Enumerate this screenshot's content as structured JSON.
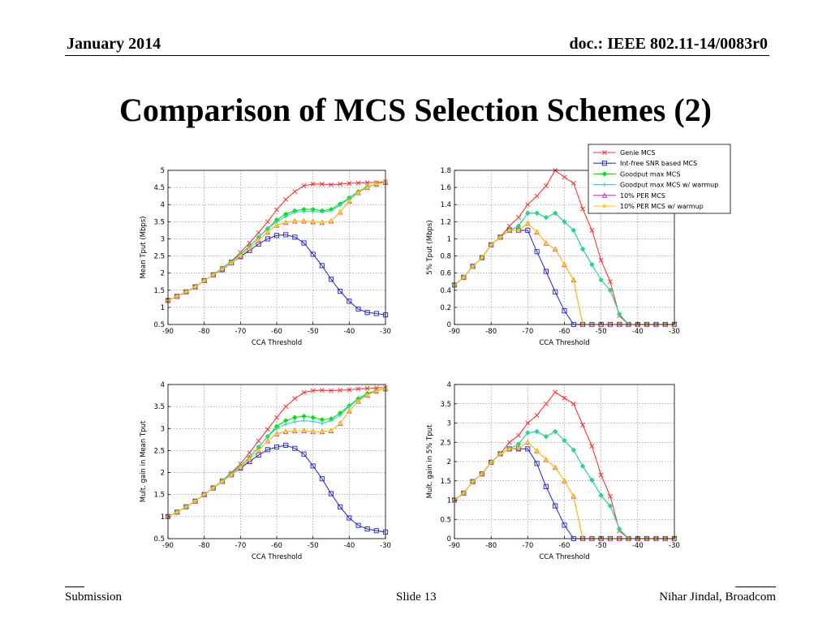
{
  "header": {
    "date": "January 2014",
    "doc": "doc.: IEEE 802.11-14/0083r0"
  },
  "slide_title": "Comparison of MCS Selection Schemes (2)",
  "footer": {
    "left": "Submission",
    "middle": "Slide 13",
    "right": "Nihar Jindal, Broadcom"
  },
  "legend": {
    "entries": [
      {
        "label": "Genie MCS",
        "color": "#ff3333",
        "marker": "x"
      },
      {
        "label": "Int-free SNR based MCS",
        "color": "#3333cc",
        "marker": "s"
      },
      {
        "label": "Goodput max MCS",
        "color": "#00e600",
        "marker": "d"
      },
      {
        "label": "Goodput max MCS w/ warmup",
        "color": "#33cccc",
        "marker": "+"
      },
      {
        "label": "10% PER MCS",
        "color": "#cc33cc",
        "marker": "^"
      },
      {
        "label": "10% PER MCS w/ warmup",
        "color": "#ffcc00",
        "marker": "*"
      }
    ]
  },
  "chart_data": [
    {
      "type": "line",
      "xlabel": "CCA Threshold",
      "ylabel": "Mean Tput (Mbps)",
      "xlim": [
        -90,
        -30
      ],
      "ylim": [
        0.5,
        5
      ],
      "xticks": [
        -90,
        -80,
        -70,
        -60,
        -50,
        -40,
        -30
      ],
      "yticks": [
        0.5,
        1,
        1.5,
        2,
        2.5,
        3,
        3.5,
        4,
        4.5,
        5
      ],
      "grid": true,
      "x": [
        -90,
        -87.5,
        -85,
        -82.5,
        -80,
        -77.5,
        -75,
        -72.5,
        -70,
        -67.5,
        -65,
        -62.5,
        -60,
        -57.5,
        -55,
        -52.5,
        -50,
        -47.5,
        -45,
        -42.5,
        -40,
        -37.5,
        -35,
        -32.5,
        -30
      ],
      "series": [
        {
          "name": "Genie MCS",
          "values": [
            1.2,
            1.32,
            1.45,
            1.6,
            1.78,
            1.95,
            2.15,
            2.35,
            2.6,
            2.88,
            3.18,
            3.5,
            3.85,
            4.15,
            4.38,
            4.55,
            4.6,
            4.6,
            4.58,
            4.6,
            4.62,
            4.63,
            4.64,
            4.65,
            4.67
          ]
        },
        {
          "name": "Int-free SNR based MCS",
          "values": [
            1.2,
            1.32,
            1.45,
            1.6,
            1.78,
            1.95,
            2.1,
            2.3,
            2.48,
            2.66,
            2.85,
            3.0,
            3.1,
            3.12,
            3.05,
            2.88,
            2.55,
            2.22,
            1.82,
            1.47,
            1.18,
            0.95,
            0.85,
            0.82,
            0.78
          ]
        },
        {
          "name": "Goodput max MCS",
          "values": [
            1.2,
            1.32,
            1.45,
            1.6,
            1.78,
            1.95,
            2.15,
            2.33,
            2.55,
            2.78,
            3.05,
            3.3,
            3.55,
            3.72,
            3.82,
            3.86,
            3.86,
            3.82,
            3.86,
            4.02,
            4.2,
            4.38,
            4.52,
            4.6,
            4.65
          ]
        },
        {
          "name": "Goodput max MCS w/ warmup",
          "values": [
            1.2,
            1.32,
            1.45,
            1.6,
            1.78,
            1.95,
            2.15,
            2.33,
            2.55,
            2.78,
            3.05,
            3.3,
            3.5,
            3.65,
            3.78,
            3.8,
            3.8,
            3.78,
            3.82,
            3.98,
            4.18,
            4.36,
            4.5,
            4.6,
            4.65
          ]
        },
        {
          "name": "10% PER MCS",
          "values": [
            1.2,
            1.32,
            1.45,
            1.6,
            1.78,
            1.95,
            2.12,
            2.3,
            2.5,
            2.72,
            2.96,
            3.2,
            3.4,
            3.48,
            3.52,
            3.52,
            3.5,
            3.48,
            3.52,
            3.78,
            4.1,
            4.35,
            4.5,
            4.6,
            4.65
          ]
        },
        {
          "name": "10% PER MCS w/ warmup",
          "values": [
            1.2,
            1.32,
            1.45,
            1.6,
            1.78,
            1.95,
            2.12,
            2.3,
            2.5,
            2.72,
            2.96,
            3.2,
            3.4,
            3.48,
            3.52,
            3.52,
            3.5,
            3.48,
            3.52,
            3.78,
            4.1,
            4.35,
            4.5,
            4.6,
            4.65
          ]
        }
      ]
    },
    {
      "type": "line",
      "xlabel": "CCA Threshold",
      "ylabel": "5% Tput (Mbps)",
      "xlim": [
        -90,
        -30
      ],
      "ylim": [
        0,
        1.8
      ],
      "xticks": [
        -90,
        -80,
        -70,
        -60,
        -50,
        -40,
        -30
      ],
      "yticks": [
        0,
        0.2,
        0.4,
        0.6,
        0.8,
        1,
        1.2,
        1.4,
        1.6,
        1.8
      ],
      "grid": true,
      "x": [
        -90,
        -87.5,
        -85,
        -82.5,
        -80,
        -77.5,
        -75,
        -72.5,
        -70,
        -67.5,
        -65,
        -62.5,
        -60,
        -57.5,
        -55,
        -52.5,
        -50,
        -47.5,
        -45,
        -42.5,
        -40,
        -37.5,
        -35,
        -32.5,
        -30
      ],
      "series": [
        {
          "name": "Genie MCS",
          "values": [
            0.46,
            0.55,
            0.68,
            0.78,
            0.93,
            1.02,
            1.15,
            1.25,
            1.4,
            1.5,
            1.62,
            1.8,
            1.72,
            1.65,
            1.35,
            1.1,
            0.75,
            0.5,
            0.1,
            0,
            0,
            0,
            0,
            0,
            0
          ]
        },
        {
          "name": "Int-free SNR based MCS",
          "values": [
            0.46,
            0.55,
            0.68,
            0.78,
            0.93,
            1.02,
            1.1,
            1.1,
            1.1,
            0.85,
            0.62,
            0.38,
            0.16,
            0,
            0,
            0,
            0,
            0,
            0,
            0,
            0,
            0,
            0,
            0,
            0
          ]
        },
        {
          "name": "Goodput max MCS",
          "values": [
            0.46,
            0.55,
            0.68,
            0.78,
            0.93,
            1.02,
            1.1,
            1.15,
            1.3,
            1.3,
            1.25,
            1.3,
            1.2,
            1.1,
            0.88,
            0.7,
            0.52,
            0.4,
            0.12,
            0,
            0,
            0,
            0,
            0,
            0
          ]
        },
        {
          "name": "Goodput max MCS w/ warmup",
          "values": [
            0.46,
            0.55,
            0.68,
            0.78,
            0.93,
            1.02,
            1.1,
            1.15,
            1.3,
            1.3,
            1.25,
            1.3,
            1.2,
            1.1,
            0.88,
            0.7,
            0.52,
            0.4,
            0.12,
            0,
            0,
            0,
            0,
            0,
            0
          ]
        },
        {
          "name": "10% PER MCS",
          "values": [
            0.46,
            0.55,
            0.68,
            0.78,
            0.93,
            1.02,
            1.1,
            1.1,
            1.18,
            1.08,
            0.95,
            0.88,
            0.7,
            0.52,
            0,
            0,
            0,
            0,
            0,
            0,
            0,
            0,
            0,
            0,
            0
          ]
        },
        {
          "name": "10% PER MCS w/ warmup",
          "values": [
            0.46,
            0.55,
            0.68,
            0.78,
            0.93,
            1.02,
            1.1,
            1.1,
            1.18,
            1.08,
            0.95,
            0.88,
            0.7,
            0.52,
            0,
            0,
            0,
            0,
            0,
            0,
            0,
            0,
            0,
            0,
            0
          ]
        }
      ]
    },
    {
      "type": "line",
      "xlabel": "CCA Threshold",
      "ylabel": "Mult. gain in Mean Tput",
      "xlim": [
        -90,
        -30
      ],
      "ylim": [
        0.5,
        4
      ],
      "xticks": [
        -90,
        -80,
        -70,
        -60,
        -50,
        -40,
        -30
      ],
      "yticks": [
        0.5,
        1,
        1.5,
        2,
        2.5,
        3,
        3.5,
        4
      ],
      "grid": true,
      "x": [
        -90,
        -87.5,
        -85,
        -82.5,
        -80,
        -77.5,
        -75,
        -72.5,
        -70,
        -67.5,
        -65,
        -62.5,
        -60,
        -57.5,
        -55,
        -52.5,
        -50,
        -47.5,
        -45,
        -42.5,
        -40,
        -37.5,
        -35,
        -32.5,
        -30
      ],
      "series": [
        {
          "name": "Genie MCS",
          "values": [
            1,
            1.1,
            1.22,
            1.35,
            1.5,
            1.65,
            1.82,
            2.0,
            2.2,
            2.45,
            2.72,
            2.98,
            3.25,
            3.5,
            3.68,
            3.82,
            3.86,
            3.87,
            3.86,
            3.87,
            3.88,
            3.9,
            3.91,
            3.92,
            3.93
          ]
        },
        {
          "name": "Int-free SNR based MCS",
          "values": [
            1,
            1.1,
            1.22,
            1.35,
            1.5,
            1.65,
            1.8,
            1.95,
            2.1,
            2.25,
            2.4,
            2.52,
            2.58,
            2.62,
            2.55,
            2.42,
            2.15,
            1.86,
            1.52,
            1.22,
            0.97,
            0.8,
            0.72,
            0.68,
            0.65
          ]
        },
        {
          "name": "Goodput max MCS",
          "values": [
            1,
            1.1,
            1.22,
            1.35,
            1.5,
            1.65,
            1.82,
            1.98,
            2.15,
            2.35,
            2.58,
            2.82,
            3.05,
            3.18,
            3.25,
            3.28,
            3.25,
            3.2,
            3.22,
            3.35,
            3.52,
            3.68,
            3.8,
            3.86,
            3.9
          ]
        },
        {
          "name": "Goodput max MCS w/ warmup",
          "values": [
            1,
            1.1,
            1.22,
            1.35,
            1.5,
            1.65,
            1.82,
            1.98,
            2.15,
            2.35,
            2.58,
            2.82,
            3.0,
            3.1,
            3.15,
            3.18,
            3.16,
            3.12,
            3.18,
            3.3,
            3.5,
            3.66,
            3.78,
            3.85,
            3.9
          ]
        },
        {
          "name": "10% PER MCS",
          "values": [
            1,
            1.1,
            1.22,
            1.35,
            1.5,
            1.65,
            1.8,
            1.95,
            2.12,
            2.3,
            2.5,
            2.72,
            2.88,
            2.93,
            2.95,
            2.95,
            2.93,
            2.93,
            2.95,
            3.12,
            3.4,
            3.62,
            3.76,
            3.85,
            3.9
          ]
        },
        {
          "name": "10% PER MCS w/ warmup",
          "values": [
            1,
            1.1,
            1.22,
            1.35,
            1.5,
            1.65,
            1.8,
            1.95,
            2.12,
            2.3,
            2.5,
            2.72,
            2.88,
            2.93,
            2.95,
            2.95,
            2.93,
            2.93,
            2.95,
            3.12,
            3.4,
            3.62,
            3.76,
            3.85,
            3.9
          ]
        }
      ]
    },
    {
      "type": "line",
      "xlabel": "CCA Threshold",
      "ylabel": "Mult. gain in 5% Tput",
      "xlim": [
        -90,
        -30
      ],
      "ylim": [
        0,
        4
      ],
      "xticks": [
        -90,
        -80,
        -70,
        -60,
        -50,
        -40,
        -30
      ],
      "yticks": [
        0,
        0.5,
        1,
        1.5,
        2,
        2.5,
        3,
        3.5,
        4
      ],
      "grid": true,
      "x": [
        -90,
        -87.5,
        -85,
        -82.5,
        -80,
        -77.5,
        -75,
        -72.5,
        -70,
        -67.5,
        -65,
        -62.5,
        -60,
        -57.5,
        -55,
        -52.5,
        -50,
        -47.5,
        -45,
        -42.5,
        -40,
        -37.5,
        -35,
        -32.5,
        -30
      ],
      "series": [
        {
          "name": "Genie MCS",
          "values": [
            1,
            1.18,
            1.48,
            1.68,
            1.98,
            2.2,
            2.5,
            2.68,
            3.0,
            3.2,
            3.5,
            3.8,
            3.65,
            3.5,
            2.95,
            2.4,
            1.65,
            1.1,
            0.2,
            0,
            0,
            0,
            0,
            0,
            0
          ]
        },
        {
          "name": "Int-free SNR based MCS",
          "values": [
            1,
            1.18,
            1.48,
            1.68,
            1.98,
            2.2,
            2.33,
            2.33,
            2.33,
            1.95,
            1.35,
            0.85,
            0.35,
            0,
            0,
            0,
            0,
            0,
            0,
            0,
            0,
            0,
            0,
            0,
            0
          ]
        },
        {
          "name": "Goodput max MCS",
          "values": [
            1,
            1.18,
            1.48,
            1.68,
            1.98,
            2.2,
            2.33,
            2.45,
            2.75,
            2.78,
            2.65,
            2.78,
            2.55,
            2.3,
            1.88,
            1.52,
            1.12,
            0.85,
            0.25,
            0,
            0,
            0,
            0,
            0,
            0
          ]
        },
        {
          "name": "Goodput max MCS w/ warmup",
          "values": [
            1,
            1.18,
            1.48,
            1.68,
            1.98,
            2.2,
            2.33,
            2.45,
            2.75,
            2.78,
            2.65,
            2.78,
            2.55,
            2.3,
            1.88,
            1.52,
            1.12,
            0.85,
            0.25,
            0,
            0,
            0,
            0,
            0,
            0
          ]
        },
        {
          "name": "10% PER MCS",
          "values": [
            1,
            1.18,
            1.48,
            1.68,
            1.98,
            2.2,
            2.33,
            2.35,
            2.5,
            2.28,
            2.05,
            1.85,
            1.5,
            1.1,
            0,
            0,
            0,
            0,
            0,
            0,
            0,
            0,
            0,
            0,
            0
          ]
        },
        {
          "name": "10% PER MCS w/ warmup",
          "values": [
            1,
            1.18,
            1.48,
            1.68,
            1.98,
            2.2,
            2.33,
            2.35,
            2.5,
            2.28,
            2.05,
            1.85,
            1.5,
            1.1,
            0,
            0,
            0,
            0,
            0,
            0,
            0,
            0,
            0,
            0,
            0
          ]
        }
      ]
    }
  ]
}
